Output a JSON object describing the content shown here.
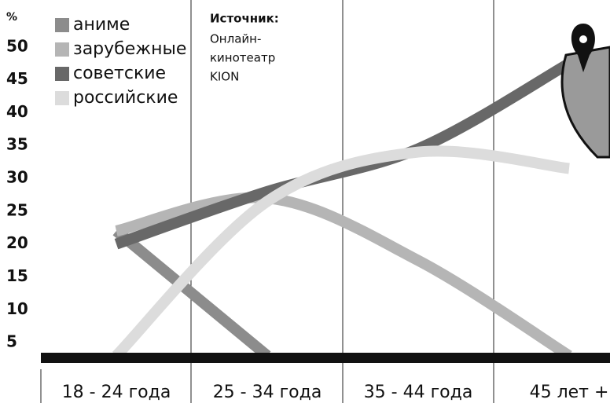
{
  "chart_data": {
    "type": "line",
    "y_label": "%",
    "source_label": "Источник:",
    "source_lines": [
      "Онлайн-",
      "кинотеатр",
      "KION"
    ],
    "categories": [
      "18 - 24 года",
      "25 - 34 года",
      "35 - 44 года",
      "45 лет +"
    ],
    "series": [
      {
        "name": "аниме",
        "color": "#8c8c8c",
        "values": [
          22,
          3,
          null,
          null
        ]
      },
      {
        "name": "зарубежные",
        "color": "#b5b5b5",
        "values": [
          22,
          27,
          17.5,
          3
        ]
      },
      {
        "name": "советские",
        "color": "#686868",
        "values": [
          20,
          28,
          34.5,
          47.5
        ]
      },
      {
        "name": "российские",
        "color": "#dcdcdc",
        "values": [
          3,
          26.5,
          34,
          31.5
        ]
      }
    ],
    "ylim": [
      2.5,
      55
    ],
    "yticks": [
      5,
      10,
      15,
      20,
      25,
      30,
      35,
      40,
      45,
      50
    ]
  }
}
